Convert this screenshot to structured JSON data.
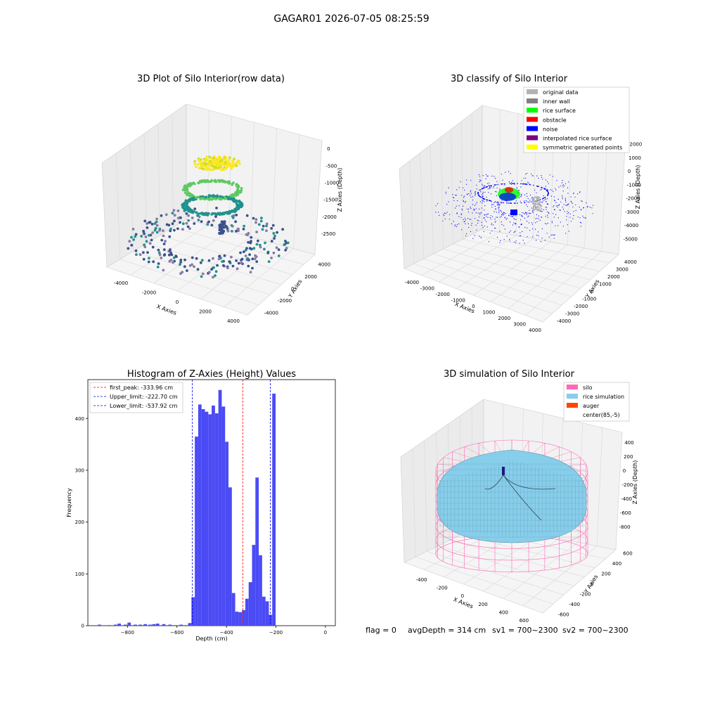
{
  "suptitle": "GAGAR01 2026-07-05 08:25:59",
  "footer": {
    "flag": "flag = 0",
    "avg_depth": "avgDepth = 314 cm",
    "sv1": "sv1 = 700~2300",
    "sv2": "sv2 = 700~2300"
  },
  "chart_data": [
    {
      "id": "raw",
      "type": "scatter",
      "title": "3D Plot of Silo Interior(row data)",
      "xlabel": "X Axies",
      "ylabel": "Y Axies",
      "zlabel": "Z Axies (Depth)",
      "x_ticks": [
        "-4000",
        "-2000",
        "0",
        "2000",
        "4000"
      ],
      "y_ticks": [
        "-4000",
        "-2000",
        "0",
        "2000",
        "4000"
      ],
      "z_ticks": [
        "0",
        "-500",
        "-1000",
        "-1500",
        "-2000",
        "-2500"
      ],
      "colormap": [
        "#440154",
        "#3b528b",
        "#21918c",
        "#5ec962",
        "#fde725"
      ]
    },
    {
      "id": "classify",
      "type": "scatter",
      "title": "3D classify of Silo Interior",
      "xlabel": "X Axies",
      "ylabel": "Y Axies",
      "zlabel": "Z Axies (Depth)",
      "x_ticks": [
        "-4000",
        "-3000",
        "-2000",
        "-1000",
        "0",
        "1000",
        "2000",
        "3000",
        "4000"
      ],
      "y_ticks": [
        "-4000",
        "-3000",
        "-2000",
        "-1000",
        "0",
        "1000",
        "2000",
        "3000",
        "4000"
      ],
      "z_ticks": [
        "2000",
        "1000",
        "0",
        "-1000",
        "-2000",
        "-3000",
        "-4000",
        "-5000"
      ],
      "legend": [
        {
          "name": "original data",
          "color": "#b3b3b3"
        },
        {
          "name": "inner wall",
          "color": "#808080"
        },
        {
          "name": "rice surface",
          "color": "#00ff00"
        },
        {
          "name": "obstacle",
          "color": "#ff0000"
        },
        {
          "name": "noise",
          "color": "#0000ff"
        },
        {
          "name": "interpolated rice surface",
          "color": "#800080"
        },
        {
          "name": "symmetric generated points",
          "color": "#ffff00"
        }
      ]
    },
    {
      "id": "hist",
      "type": "bar",
      "title": "Histogram of Z-Axies (Height) Values",
      "xlabel": "Depth (cm)",
      "ylabel": "Frequency",
      "xlim": [
        -960,
        40
      ],
      "ylim": [
        0,
        475
      ],
      "x_ticks": [
        -800,
        -600,
        -400,
        -200,
        0
      ],
      "y_ticks": [
        0,
        100,
        200,
        300,
        400
      ],
      "bar_color": "#4b4bf5",
      "bin_width": 13.6,
      "bins_start": -555,
      "values": [
        5,
        55,
        365,
        427,
        418,
        413,
        408,
        425,
        410,
        455,
        423,
        355,
        267,
        63,
        27,
        26,
        30,
        52,
        84,
        156,
        286,
        136,
        56,
        47,
        21,
        448
      ],
      "outliers": [
        {
          "x": -920,
          "value": 2
        },
        {
          "x": -880,
          "value": 1
        },
        {
          "x": -855,
          "value": 2
        },
        {
          "x": -840,
          "value": 4
        },
        {
          "x": -815,
          "value": 2
        },
        {
          "x": -800,
          "value": 6
        },
        {
          "x": -775,
          "value": 2
        },
        {
          "x": -755,
          "value": 2
        },
        {
          "x": -735,
          "value": 3
        },
        {
          "x": -715,
          "value": 2
        },
        {
          "x": -700,
          "value": 3
        },
        {
          "x": -685,
          "value": 4
        },
        {
          "x": -660,
          "value": 3
        },
        {
          "x": -635,
          "value": 2
        },
        {
          "x": -615,
          "value": 1
        },
        {
          "x": -590,
          "value": 2
        },
        {
          "x": -570,
          "value": 1
        }
      ],
      "lines": [
        {
          "name": "first_peak: -333.96 cm",
          "x": -333.96,
          "color": "#ff0000"
        },
        {
          "name": "Upper_limit: -222.70 cm",
          "x": -222.7,
          "color": "#0000ff"
        },
        {
          "name": "Lower_limit: -537.92 cm",
          "x": -537.92,
          "color": "#0000ff"
        }
      ]
    },
    {
      "id": "simulation",
      "type": "scatter",
      "title": "3D simulation of Silo Interior",
      "xlabel": "X Axies",
      "ylabel": "Y Axies",
      "zlabel": "Z Axies (Depth)",
      "x_ticks": [
        "-400",
        "-200",
        "0",
        "200",
        "400",
        "600"
      ],
      "y_ticks": [
        "-600",
        "-400",
        "-200",
        "0",
        "200",
        "400",
        "600"
      ],
      "z_ticks": [
        "400",
        "200",
        "0",
        "-200",
        "-400",
        "-600",
        "-800"
      ],
      "legend": [
        {
          "name": "silo",
          "color": "#ff69b4"
        },
        {
          "name": "rice simulation",
          "color": "#87ceeb"
        },
        {
          "name": "auger",
          "color": "#ff4500"
        },
        {
          "name": "center(85,-5)",
          "color": "#ffffff"
        }
      ]
    }
  ]
}
